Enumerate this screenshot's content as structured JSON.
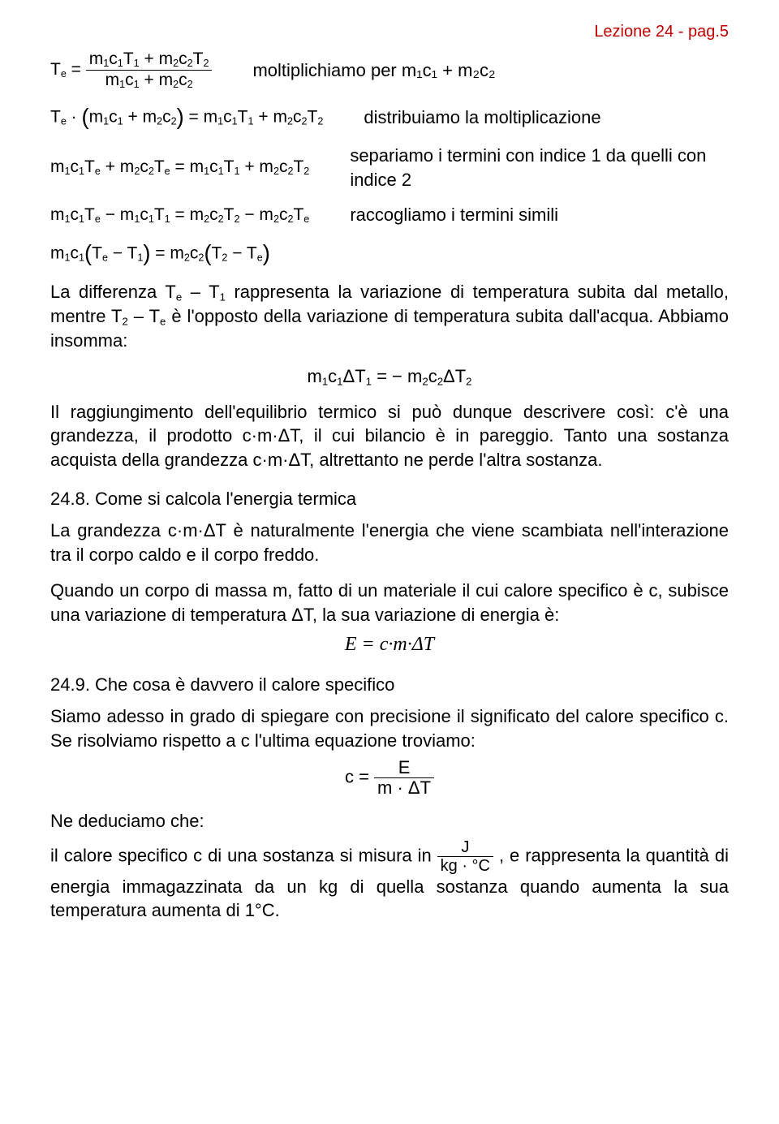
{
  "header": {
    "pageref": "Lezione 24 - pag.5"
  },
  "rows": [
    {
      "ann": "moltiplichiamo per m₁c₁ + m₂c₂"
    },
    {
      "ann": "distribuiamo la moltiplicazione"
    },
    {
      "ann": "separiamo i termini con indice 1 da quelli con indice 2"
    },
    {
      "ann": "raccogliamo i termini simili"
    }
  ],
  "body": {
    "p1a": "La differenza T",
    "p1b": " – T",
    "p1c": " rappresenta la variazione di temperatura subita dal metallo, mentre T",
    "p1d": " – T",
    "p1e": " è l'opposto della variazione di temperatura subita dall'acqua. Abbiamo insomma:",
    "p2": "Il raggiungimento dell'equilibrio termico si può dunque descrivere così: c'è una grandezza, il prodotto c·m·ΔT, il cui bilancio è in pareggio. Tanto una sostanza acquista della grandezza c·m·ΔT, altrettanto ne perde l'altra sostanza.",
    "h1": "24.8. Come si calcola l'energia termica",
    "p3": "La grandezza c·m·ΔT è naturalmente l'energia che viene scambiata nell'interazione tra il corpo caldo e il corpo freddo.",
    "p4": "Quando un corpo di massa m, fatto di un materiale il cui calore specifico è c, subisce una variazione di temperatura ΔT, la sua variazione di energia è:",
    "eqE": "E = c·m·ΔT",
    "h2": "24.9. Che cosa è davvero il calore specifico",
    "p5": "Siamo adesso in grado di spiegare con precisione il significato del calore specifico c. Se risolviamo rispetto a c l'ultima equazione troviamo:",
    "p6": "Ne deduciamo che:",
    "p7a": "il calore specifico c di una sostanza si misura in ",
    "p7b": ", e rappresenta la quantità di energia immagazzinata da un kg di quella sostanza quando aumenta la sua temperatura aumenta di 1°C.",
    "frac_c": {
      "num": "E",
      "den": "m · ΔT",
      "lead": "c = "
    },
    "frac_unit": {
      "num": "J",
      "den": "kg · °C"
    },
    "sub_e": "e",
    "sub_1": "1",
    "sub_2": "2"
  }
}
